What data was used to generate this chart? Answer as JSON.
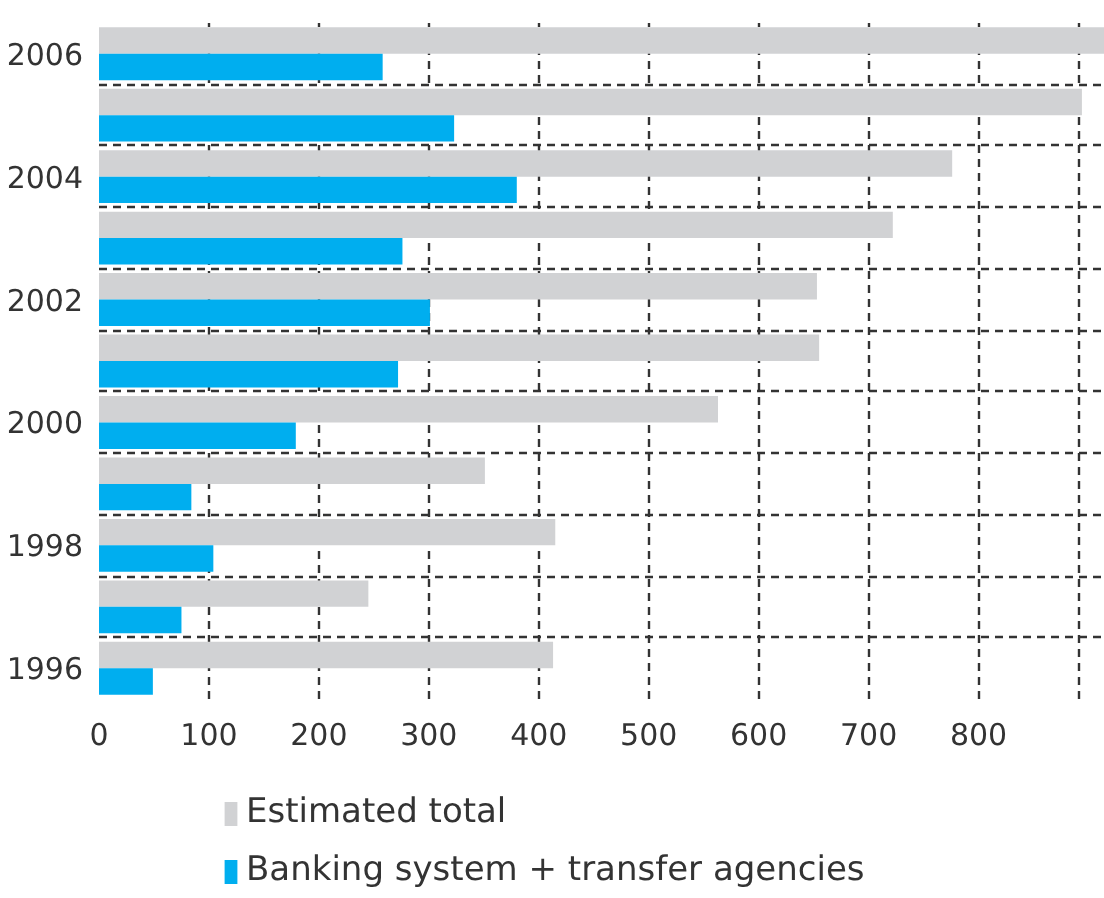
{
  "chart_data": {
    "type": "bar",
    "orientation": "horizontal",
    "categories": [
      "2006",
      null,
      "2004",
      null,
      "2002",
      null,
      "2000",
      null,
      "1998",
      null,
      "1996"
    ],
    "series": [
      {
        "name": "Estimated total",
        "color": "#d1d2d4",
        "values": [
          915,
          894,
          776,
          722,
          653,
          655,
          563,
          351,
          415,
          245,
          413
        ]
      },
      {
        "name": "Banking system + transfer agencies",
        "color": "#00aeef",
        "values": [
          258,
          323,
          380,
          276,
          301,
          272,
          179,
          84,
          104,
          75,
          49
        ]
      }
    ],
    "xlim": [
      0,
      915
    ],
    "xticks": [
      0,
      100,
      200,
      300,
      400,
      500,
      600,
      700,
      800,
      {
        "value": 892,
        "label": null
      }
    ],
    "grid": true,
    "legend": "bottom"
  }
}
